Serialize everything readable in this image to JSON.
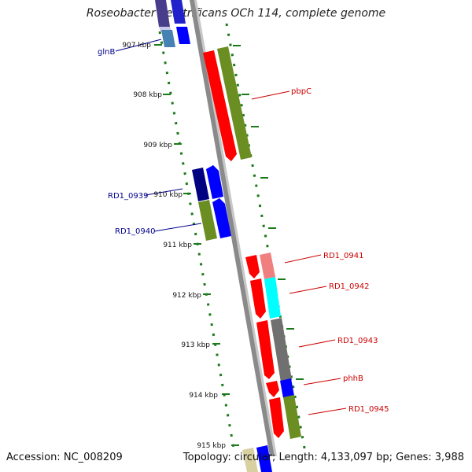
{
  "title": "Roseobacter denitrificans OCh 114, complete genome",
  "footer": {
    "accession": "Accession: NC_008209",
    "summary": "Topology: circular; Length: 4,133,097 bp; Genes: 3,988"
  },
  "scale_labels": [
    "907 kbp",
    "908 kbp",
    "909 kbp",
    "910 kbp",
    "911 kbp",
    "912 kbp",
    "913 kbp",
    "914 kbp",
    "915 kbp"
  ],
  "gene_labels": [
    {
      "name": "glnB",
      "side": "left",
      "color": "#00008b"
    },
    {
      "name": "pbpC",
      "side": "right",
      "color": "#cc0000"
    },
    {
      "name": "RD1_0939",
      "side": "left",
      "color": "#00008b"
    },
    {
      "name": "RD1_0940",
      "side": "left",
      "color": "#00008b"
    },
    {
      "name": "RD1_0941",
      "side": "right",
      "color": "#cc0000"
    },
    {
      "name": "RD1_0942",
      "side": "right",
      "color": "#cc0000"
    },
    {
      "name": "RD1_0943",
      "side": "right",
      "color": "#cc0000"
    },
    {
      "name": "phhB",
      "side": "right",
      "color": "#cc0000"
    },
    {
      "name": "RD1_0945",
      "side": "right",
      "color": "#cc0000"
    }
  ],
  "colors": {
    "backbone": "#8a8a8a",
    "ticks": "#1a7a1a",
    "red": "#ff0000",
    "olive": "#6b8e23",
    "blue": "#0000ff",
    "navy": "#000080",
    "cyan": "#00ffff",
    "salmon": "#f08080",
    "gray": "#707070"
  }
}
